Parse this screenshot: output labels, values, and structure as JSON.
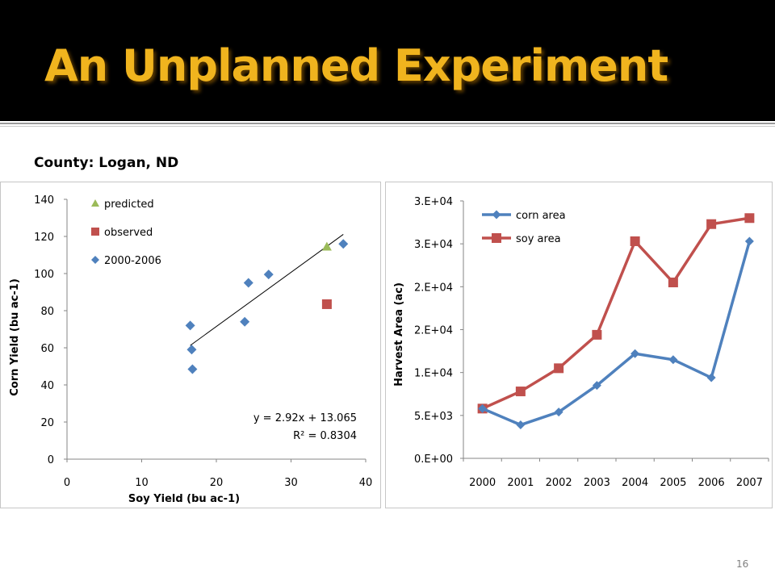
{
  "slide": {
    "title": "An Unplanned Experiment",
    "county": "County: Logan, ND",
    "slide_number": "16"
  },
  "colors": {
    "title_text": "#f0b41e",
    "title_bar": "#000000",
    "blue_series": "#4f81bd",
    "red_series": "#c0504d",
    "green_marker": "#9bbb59"
  },
  "chart_data": [
    {
      "type": "scatter",
      "xlabel": "Soy Yield (bu ac-1)",
      "ylabel": "Corn Yield (bu ac-1)",
      "xlim": [
        0,
        40
      ],
      "ylim": [
        0,
        140
      ],
      "x_ticks": [
        "0",
        "10",
        "20",
        "30",
        "40"
      ],
      "y_ticks": [
        "0",
        "20",
        "40",
        "60",
        "80",
        "100",
        "120",
        "140"
      ],
      "legend_position": "top-left",
      "series": [
        {
          "name": "predicted",
          "marker": "triangle",
          "color": "#9bbb59",
          "points": [
            [
              34.8,
              114.5
            ]
          ]
        },
        {
          "name": "observed",
          "marker": "square",
          "color": "#c0504d",
          "points": [
            [
              34.8,
              83.5
            ]
          ]
        },
        {
          "name": "2000-2006",
          "marker": "diamond",
          "color": "#4f81bd",
          "points": [
            [
              16.5,
              72
            ],
            [
              16.7,
              59
            ],
            [
              16.8,
              48.5
            ],
            [
              23.8,
              74
            ],
            [
              24.3,
              95
            ],
            [
              27,
              99.5
            ],
            [
              37,
              116
            ]
          ]
        }
      ],
      "trendline": {
        "x_range": [
          16.5,
          37
        ],
        "slope": 2.92,
        "intercept": 13.065
      },
      "annotations": {
        "equation": "y = 2.92x + 13.065",
        "r_squared": "R² = 0.8304"
      }
    },
    {
      "type": "line",
      "ylabel": "Harvest Area (ac)",
      "categories": [
        "2000",
        "2001",
        "2002",
        "2003",
        "2004",
        "2005",
        "2006",
        "2007"
      ],
      "ylim": [
        0,
        30000
      ],
      "y_ticks": [
        "0.E+00",
        "5.E+03",
        "1.E+04",
        "2.E+04",
        "2.E+04",
        "3.E+04",
        "3.E+04"
      ],
      "legend_position": "top-left",
      "series": [
        {
          "name": "corn area",
          "marker": "diamond",
          "color": "#4f81bd",
          "values": [
            5800,
            3900,
            5400,
            8500,
            12200,
            11500,
            9400,
            25300
          ]
        },
        {
          "name": "soy area",
          "marker": "square",
          "color": "#c0504d",
          "values": [
            5800,
            7800,
            10500,
            14400,
            25300,
            20500,
            27300,
            28000
          ]
        }
      ]
    }
  ]
}
